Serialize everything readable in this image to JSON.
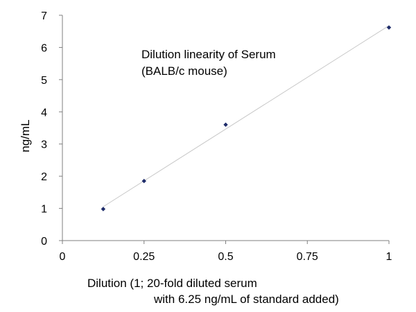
{
  "chart_data": {
    "type": "scatter",
    "annotation_lines": [
      "Dilution linearity of Serum",
      "(BALB/c mouse)"
    ],
    "xlabel_lines": [
      "Dilution (1; 20-fold diluted serum",
      "with 6.25 ng/mL of standard added)"
    ],
    "ylabel": "ng/mL",
    "xlim": [
      0,
      1
    ],
    "ylim": [
      0,
      7
    ],
    "x_ticks": [
      0,
      0.25,
      0.5,
      0.75,
      1
    ],
    "x_tick_labels": [
      "0",
      "0.25",
      "0.5",
      "0.75",
      "1"
    ],
    "y_ticks": [
      0,
      1,
      2,
      3,
      4,
      5,
      6,
      7
    ],
    "y_tick_labels": [
      "0",
      "1",
      "2",
      "3",
      "4",
      "5",
      "6",
      "7"
    ],
    "grid": false,
    "legend": false,
    "trendline": true,
    "series": [
      {
        "x": [
          0.125,
          0.25,
          0.5,
          1
        ],
        "y": [
          0.98,
          1.85,
          3.6,
          6.62
        ]
      }
    ],
    "colors": {
      "marker": "#1f2d6b",
      "trendline": "#c8c8c8",
      "axis": "#7f7f7f"
    }
  }
}
